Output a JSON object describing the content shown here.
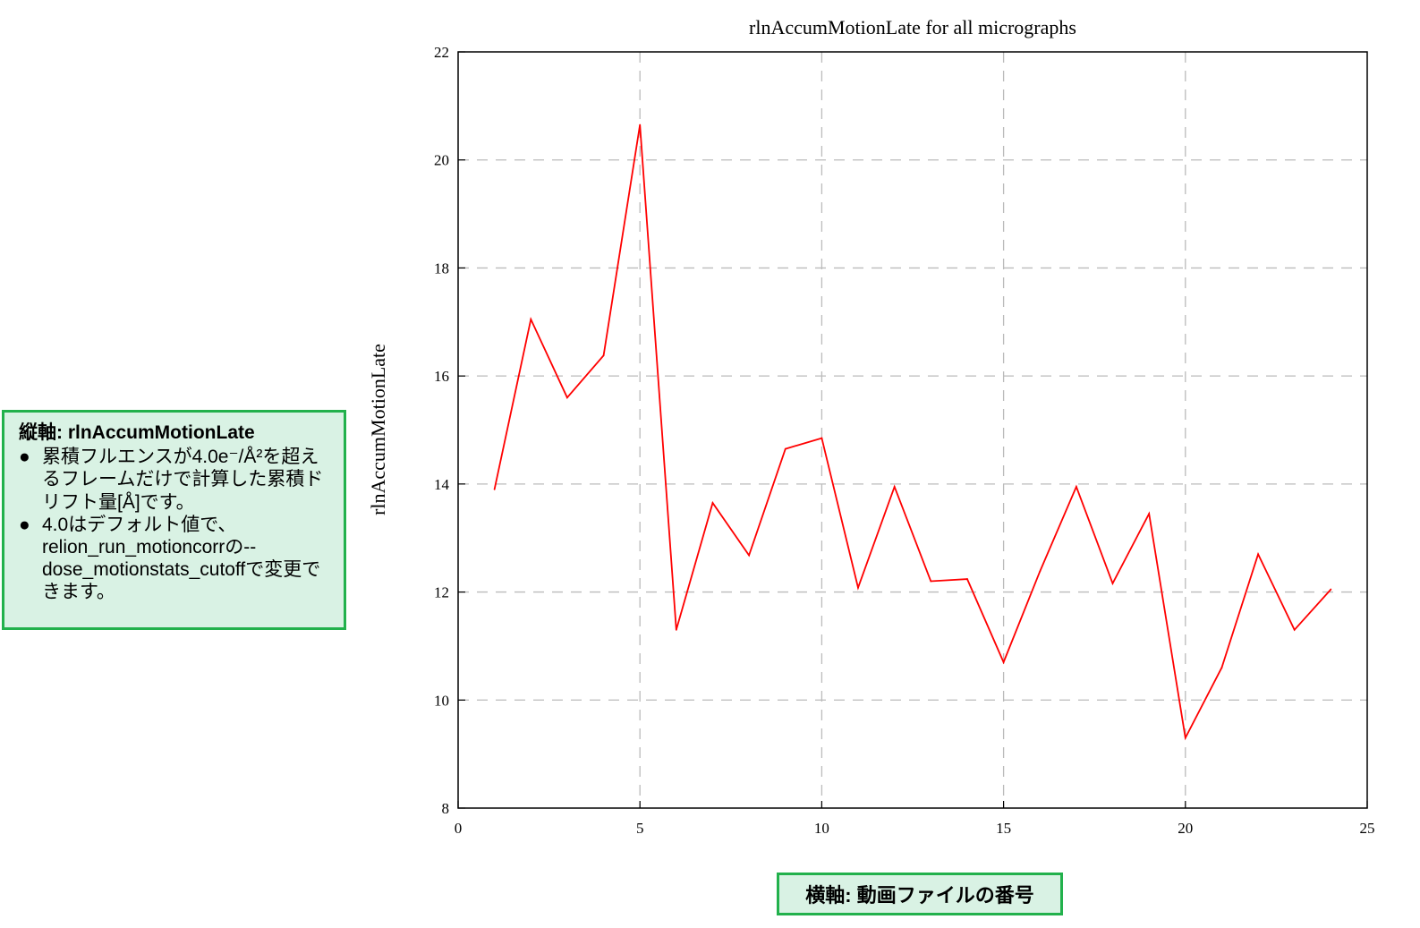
{
  "chart_data": {
    "type": "line",
    "title": "rlnAccumMotionLate for all micrographs",
    "ylabel": "rlnAccumMotionLate",
    "xlabel": "",
    "xlim": [
      0,
      25
    ],
    "ylim": [
      8,
      22
    ],
    "xticks": [
      0,
      5,
      10,
      15,
      20,
      25
    ],
    "yticks": [
      8,
      10,
      12,
      14,
      16,
      18,
      20,
      22
    ],
    "grid": true,
    "series": [
      {
        "color": "#ff0000",
        "x": [
          1,
          2,
          3,
          4,
          5,
          6,
          7,
          8,
          9,
          10,
          11,
          12,
          13,
          14,
          15,
          16,
          17,
          18,
          19,
          20,
          21,
          22,
          23,
          24
        ],
        "y": [
          13.9,
          17.05,
          15.6,
          16.38,
          20.65,
          11.3,
          13.65,
          12.68,
          14.65,
          14.85,
          12.08,
          13.95,
          12.2,
          12.24,
          10.7,
          12.38,
          13.95,
          12.16,
          13.45,
          9.3,
          10.6,
          12.7,
          11.3,
          12.05
        ]
      }
    ]
  },
  "annotations": {
    "yaxis_note": {
      "title": "縦軸: rlnAccumMotionLate",
      "bullet": "●",
      "items": [
        "累積フルエンスが4.0e⁻/Å²を超えるフレームだけで計算した累積ドリフト量[Å]です。",
        "4.0はデフォルト値で、relion_run_motioncorrの--dose_motionstats_cutoffで変更できます。"
      ]
    },
    "xaxis_note": {
      "text": "横軸: 動画ファイルの番号"
    }
  },
  "colors": {
    "line": "#ff0000",
    "note_bg": "#d9f2e4",
    "note_border": "#22b14c",
    "grid": "#bbbbbb"
  }
}
